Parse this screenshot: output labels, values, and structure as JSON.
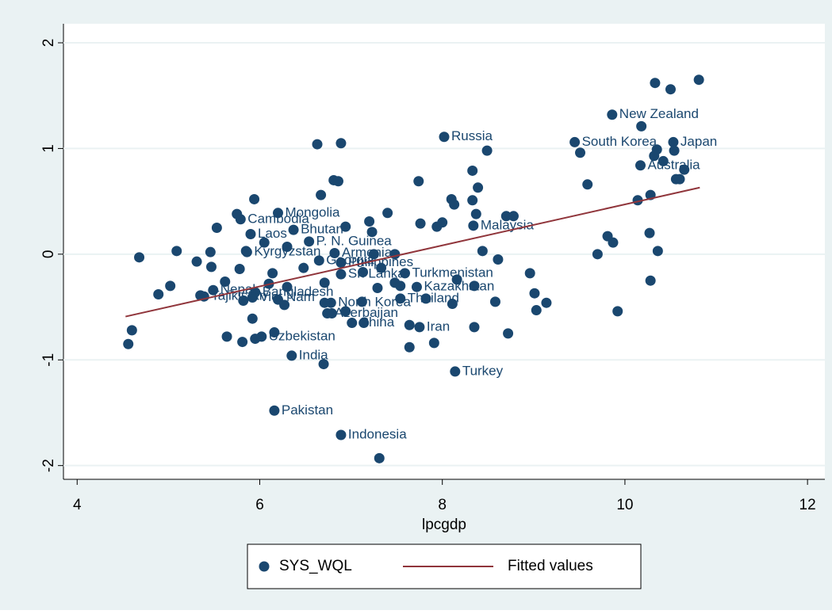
{
  "chart_data": {
    "type": "scatter",
    "xlabel": "lpcgdp",
    "xlim": [
      3.85,
      12.19
    ],
    "xticks": [
      4,
      6,
      8,
      10,
      12
    ],
    "ylim": [
      -2.13,
      2.18
    ],
    "yticks": [
      -2,
      -1,
      0,
      1,
      2
    ],
    "grid": true,
    "legend": "bottom",
    "series": [
      {
        "name": "SYS_WQL",
        "type": "scatter",
        "color": "#1a476f",
        "x": [
          9.86,
          8.02,
          9.45,
          10.53,
          10.17,
          6.2,
          5.79,
          6.37,
          5.9,
          6.54,
          8.34,
          5.86,
          6.82,
          6.65,
          6.89,
          6.89,
          7.59,
          7.72,
          5.49,
          5.95,
          5.39,
          5.92,
          7.54,
          6.78,
          6.74,
          7.01,
          7.75,
          6.02,
          6.35,
          8.14,
          6.16,
          6.89,
          4.56,
          4.6,
          4.68,
          4.89,
          5.02,
          5.09,
          5.31,
          5.46,
          5.47,
          5.35,
          5.53,
          5.62,
          5.64,
          5.75,
          5.81,
          5.78,
          5.82,
          5.85,
          5.94,
          5.92,
          5.95,
          6.05,
          6.1,
          6.14,
          6.16,
          6.2,
          6.27,
          6.3,
          6.3,
          6.48,
          6.63,
          6.67,
          6.71,
          6.71,
          6.7,
          6.79,
          6.81,
          6.86,
          6.89,
          6.94,
          6.94,
          7.12,
          7.13,
          7.14,
          7.2,
          7.23,
          7.25,
          7.31,
          7.29,
          7.33,
          7.4,
          7.48,
          7.48,
          7.54,
          7.64,
          7.64,
          7.74,
          7.76,
          7.82,
          7.91,
          7.94,
          8.0,
          8.1,
          8.13,
          8.11,
          8.16,
          8.33,
          8.33,
          8.35,
          8.35,
          8.37,
          8.39,
          8.44,
          8.49,
          8.58,
          8.61,
          8.7,
          8.72,
          8.78,
          8.96,
          9.01,
          9.03,
          9.14,
          9.51,
          9.59,
          9.7,
          9.81,
          9.87,
          9.92,
          10.14,
          10.18,
          10.28,
          10.27,
          10.28,
          10.33,
          10.32,
          10.35,
          10.36,
          10.42,
          10.5,
          10.54,
          10.56,
          10.6,
          10.65,
          10.81
        ],
        "values": [
          1.32,
          1.11,
          1.06,
          1.06,
          0.84,
          0.39,
          0.33,
          0.23,
          0.19,
          0.12,
          0.27,
          0.02,
          0.01,
          -0.06,
          -0.08,
          -0.19,
          -0.18,
          -0.31,
          -0.34,
          -0.36,
          -0.4,
          -0.41,
          -0.42,
          -0.46,
          -0.56,
          -0.65,
          -0.69,
          -0.78,
          -0.96,
          -1.11,
          -1.48,
          -1.71,
          -0.85,
          -0.72,
          -0.03,
          -0.38,
          -0.3,
          0.03,
          -0.07,
          0.02,
          -0.12,
          -0.39,
          0.25,
          -0.26,
          -0.78,
          0.38,
          -0.83,
          -0.14,
          -0.44,
          0.03,
          0.52,
          -0.61,
          -0.8,
          0.11,
          -0.28,
          -0.18,
          -0.74,
          -0.43,
          -0.48,
          0.07,
          -0.31,
          -0.13,
          1.04,
          0.56,
          -0.27,
          -0.46,
          -1.04,
          -0.56,
          0.7,
          0.69,
          1.05,
          0.26,
          -0.54,
          -0.45,
          -0.17,
          -0.65,
          0.31,
          0.21,
          0.0,
          -1.93,
          -0.32,
          -0.13,
          0.39,
          0.0,
          -0.27,
          -0.3,
          -0.67,
          -0.88,
          0.69,
          0.29,
          -0.42,
          -0.84,
          0.26,
          0.3,
          0.52,
          0.47,
          -0.47,
          -0.24,
          0.79,
          0.51,
          -0.3,
          -0.69,
          0.38,
          0.63,
          0.03,
          0.98,
          -0.45,
          -0.05,
          0.36,
          -0.75,
          0.36,
          -0.18,
          -0.37,
          -0.53,
          -0.46,
          0.96,
          0.66,
          0.0,
          0.17,
          0.11,
          -0.54,
          0.51,
          1.21,
          0.56,
          0.2,
          -0.25,
          1.62,
          0.93,
          0.99,
          0.03,
          0.88,
          1.56,
          0.98,
          0.71,
          0.71,
          0.8,
          1.65
        ],
        "labels": [
          "New Zealand",
          "Russia",
          "South Korea",
          "Japan",
          "Australia",
          "Mongolia",
          "Cambodia",
          "Bhutan",
          "Laos",
          "P. N. Guinea",
          "Malaysia",
          "Kyrgyzstan",
          "Armenia",
          "Georgia",
          "Philippines",
          "Sri Lanka",
          "Turkmenistan",
          "Kazakhstan",
          "Nepal",
          "Bangladesh",
          "Tajikistan",
          "Viet Nam",
          "Thailand",
          "North Korea",
          "Azerbaijan",
          "China",
          "Iran",
          "Uzbekistan",
          "India",
          "Turkey",
          "Pakistan",
          "Indonesia",
          null,
          null,
          null,
          null,
          null,
          null,
          null,
          null,
          null,
          null,
          null,
          null,
          null,
          null,
          null,
          null,
          null,
          null,
          null,
          null,
          null,
          null,
          null,
          null,
          null,
          null,
          null,
          null,
          null,
          null,
          null,
          null,
          null,
          null,
          null,
          null,
          null,
          null,
          null,
          null,
          null,
          null,
          null,
          null,
          null,
          null,
          null,
          null,
          null,
          null,
          null,
          null,
          null,
          null,
          null,
          null,
          null,
          null,
          null,
          null,
          null,
          null,
          null,
          null,
          null,
          null,
          null,
          null,
          null,
          null,
          null,
          null,
          null,
          null,
          null,
          null,
          null,
          null,
          null,
          null,
          null,
          null,
          null,
          null,
          null,
          null,
          null,
          null,
          null,
          null,
          null,
          null,
          null,
          null,
          null,
          null,
          null,
          null,
          null,
          null,
          null,
          null,
          null
        ]
      },
      {
        "name": "Fitted values",
        "type": "line",
        "color": "#90353b",
        "x": [
          4.53,
          10.82
        ],
        "values": [
          -0.59,
          0.63
        ]
      }
    ]
  }
}
